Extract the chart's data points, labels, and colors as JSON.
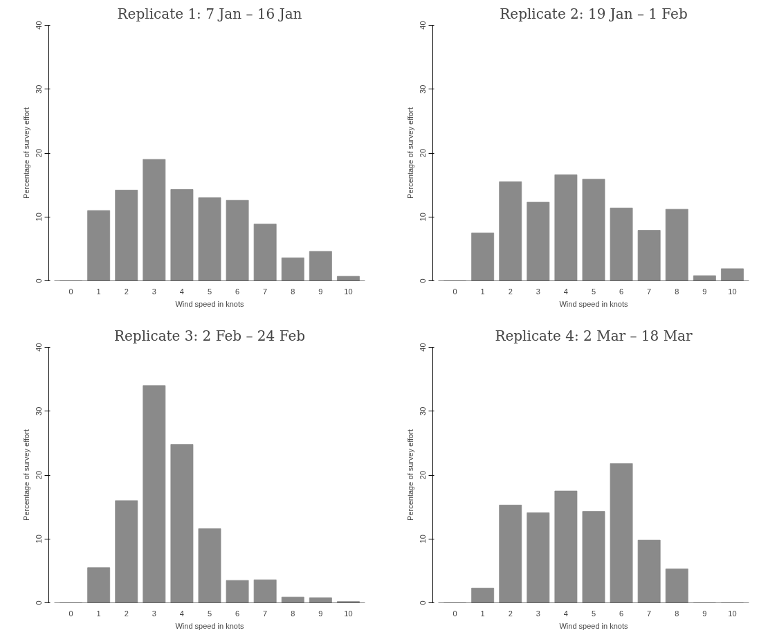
{
  "chart_data": [
    {
      "type": "bar",
      "title": "Replicate 1: 7 Jan – 16 Jan",
      "xlabel": "Wind speed in knots",
      "ylabel": "Percentage of survey effort",
      "categories": [
        "0",
        "1",
        "2",
        "3",
        "4",
        "5",
        "6",
        "7",
        "8",
        "9",
        "10"
      ],
      "values": [
        0,
        11,
        14.2,
        19,
        14.3,
        13,
        12.6,
        8.9,
        3.6,
        4.6,
        0.7
      ],
      "color": "#8a8a8a",
      "ylim": [
        0,
        40
      ],
      "yticks": [
        0,
        10,
        20,
        30,
        40
      ]
    },
    {
      "type": "bar",
      "title": "Replicate 2: 19 Jan – 1 Feb",
      "xlabel": "Wind speed in knots",
      "ylabel": "Percentage of survey effort",
      "categories": [
        "0",
        "1",
        "2",
        "3",
        "4",
        "5",
        "6",
        "7",
        "8",
        "9",
        "10"
      ],
      "values": [
        0,
        7.5,
        15.5,
        12.3,
        16.6,
        15.9,
        11.4,
        7.9,
        11.2,
        0.8,
        1.9
      ],
      "color": "#8a8a8a",
      "ylim": [
        0,
        40
      ],
      "yticks": [
        0,
        10,
        20,
        30,
        40
      ]
    },
    {
      "type": "bar",
      "title": "Replicate 3: 2 Feb – 24 Feb",
      "xlabel": "Wind speed in knots",
      "ylabel": "Percentage of survey effort",
      "categories": [
        "0",
        "1",
        "2",
        "3",
        "4",
        "5",
        "6",
        "7",
        "8",
        "9",
        "10"
      ],
      "values": [
        0,
        5.5,
        16,
        34,
        24.8,
        11.6,
        3.5,
        3.6,
        0.9,
        0.8,
        0.2
      ],
      "color": "#8a8a8a",
      "ylim": [
        0,
        40
      ],
      "yticks": [
        0,
        10,
        20,
        30,
        40
      ]
    },
    {
      "type": "bar",
      "title": "Replicate 4: 2 Mar – 18 Mar",
      "xlabel": "Wind speed in knots",
      "ylabel": "Percentage of survey effort",
      "categories": [
        "0",
        "1",
        "2",
        "3",
        "4",
        "5",
        "6",
        "7",
        "8",
        "9",
        "10"
      ],
      "values": [
        0,
        2.3,
        15.3,
        14.1,
        17.5,
        14.3,
        21.8,
        9.8,
        5.3,
        0,
        0
      ],
      "color": "#8a8a8a",
      "ylim": [
        0,
        40
      ],
      "yticks": [
        0,
        10,
        20,
        30,
        40
      ]
    }
  ]
}
